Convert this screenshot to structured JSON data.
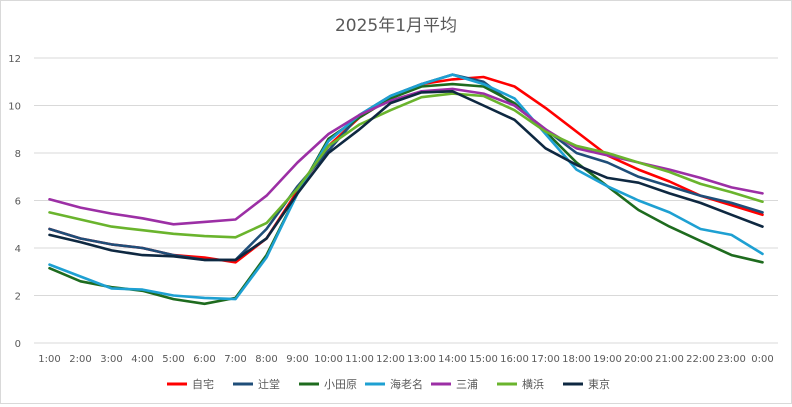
{
  "chart_data": {
    "type": "line",
    "title": "2025年1月平均",
    "xlabel": "",
    "ylabel": "",
    "ylim": [
      0,
      12
    ],
    "yticks": [
      0,
      2,
      4,
      6,
      8,
      10,
      12
    ],
    "grid": true,
    "legend_position": "bottom",
    "categories": [
      "1:00",
      "2:00",
      "3:00",
      "4:00",
      "5:00",
      "6:00",
      "7:00",
      "8:00",
      "9:00",
      "10:00",
      "11:00",
      "12:00",
      "13:00",
      "14:00",
      "15:00",
      "16:00",
      "17:00",
      "18:00",
      "19:00",
      "20:00",
      "21:00",
      "22:00",
      "23:00",
      "0:00"
    ],
    "series": [
      {
        "name": "自宅",
        "color": "#ff0000",
        "values": [
          4.8,
          4.4,
          4.15,
          4.0,
          3.7,
          3.6,
          3.4,
          4.4,
          6.4,
          8.3,
          9.5,
          10.3,
          10.9,
          11.1,
          11.2,
          10.8,
          9.9,
          8.9,
          7.9,
          7.3,
          6.8,
          6.2,
          5.8,
          5.4
        ]
      },
      {
        "name": "辻堂",
        "color": "#1f4e79",
        "values": [
          4.8,
          4.4,
          4.15,
          4.0,
          3.7,
          3.5,
          3.5,
          4.8,
          6.6,
          8.1,
          9.6,
          10.4,
          10.9,
          11.3,
          11.0,
          10.0,
          9.0,
          8.0,
          7.6,
          7.0,
          6.6,
          6.2,
          5.9,
          5.5
        ]
      },
      {
        "name": "小田原",
        "color": "#1e6b1e",
        "values": [
          3.15,
          2.6,
          2.35,
          2.2,
          1.85,
          1.65,
          1.9,
          3.7,
          6.3,
          8.6,
          9.5,
          10.3,
          10.8,
          10.9,
          10.8,
          10.1,
          8.9,
          7.6,
          6.6,
          5.6,
          4.9,
          4.3,
          3.7,
          3.4
        ]
      },
      {
        "name": "海老名",
        "color": "#1ea0d2",
        "values": [
          3.3,
          2.8,
          2.3,
          2.25,
          2.0,
          1.9,
          1.85,
          3.6,
          6.3,
          8.5,
          9.6,
          10.4,
          10.9,
          11.3,
          10.9,
          10.3,
          8.8,
          7.3,
          6.6,
          6.0,
          5.5,
          4.8,
          4.55,
          3.75
        ]
      },
      {
        "name": "三浦",
        "color": "#9c2fa5",
        "values": [
          6.05,
          5.7,
          5.45,
          5.25,
          5.0,
          5.1,
          5.2,
          6.2,
          7.6,
          8.8,
          9.6,
          10.2,
          10.6,
          10.7,
          10.5,
          10.0,
          9.0,
          8.2,
          7.9,
          7.6,
          7.3,
          6.95,
          6.55,
          6.3
        ]
      },
      {
        "name": "横浜",
        "color": "#6ab42d",
        "values": [
          5.5,
          5.2,
          4.9,
          4.75,
          4.6,
          4.5,
          4.45,
          5.05,
          6.5,
          8.3,
          9.2,
          9.8,
          10.35,
          10.5,
          10.4,
          9.8,
          8.9,
          8.3,
          8.0,
          7.6,
          7.2,
          6.7,
          6.35,
          5.95
        ]
      },
      {
        "name": "東京",
        "color": "#0e2841",
        "values": [
          4.55,
          4.25,
          3.9,
          3.7,
          3.65,
          3.5,
          3.5,
          4.4,
          6.3,
          8.0,
          9.0,
          10.1,
          10.55,
          10.6,
          10.0,
          9.4,
          8.2,
          7.5,
          6.95,
          6.75,
          6.3,
          5.9,
          5.4,
          4.9
        ]
      }
    ]
  }
}
